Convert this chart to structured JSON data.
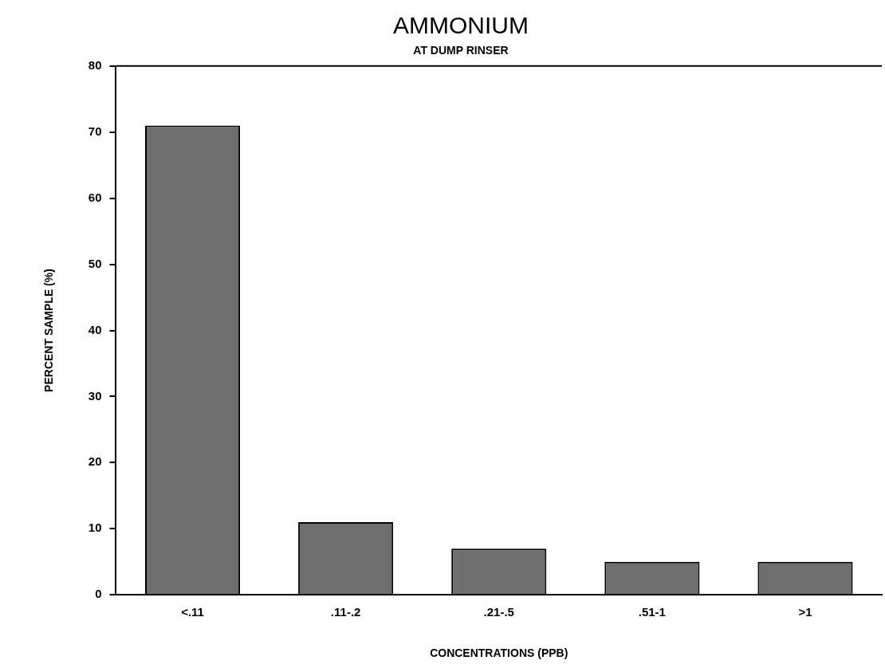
{
  "chart_data": {
    "type": "bar",
    "title": "AMMONIUM",
    "subtitle": "AT DUMP RINSER",
    "xlabel": "CONCENTRATIONS (PPB)",
    "ylabel": "PERCENT SAMPLE (%)",
    "categories": [
      "<.11",
      ".11-.2",
      ".21-.5",
      ".51-1",
      ">1"
    ],
    "values": [
      71,
      11,
      7,
      5,
      5
    ],
    "color": "#6e6e6e",
    "ylim": [
      0,
      80
    ],
    "yticks": [
      0,
      10,
      20,
      30,
      40,
      50,
      60,
      70,
      80
    ],
    "grid": false,
    "legend": false
  }
}
